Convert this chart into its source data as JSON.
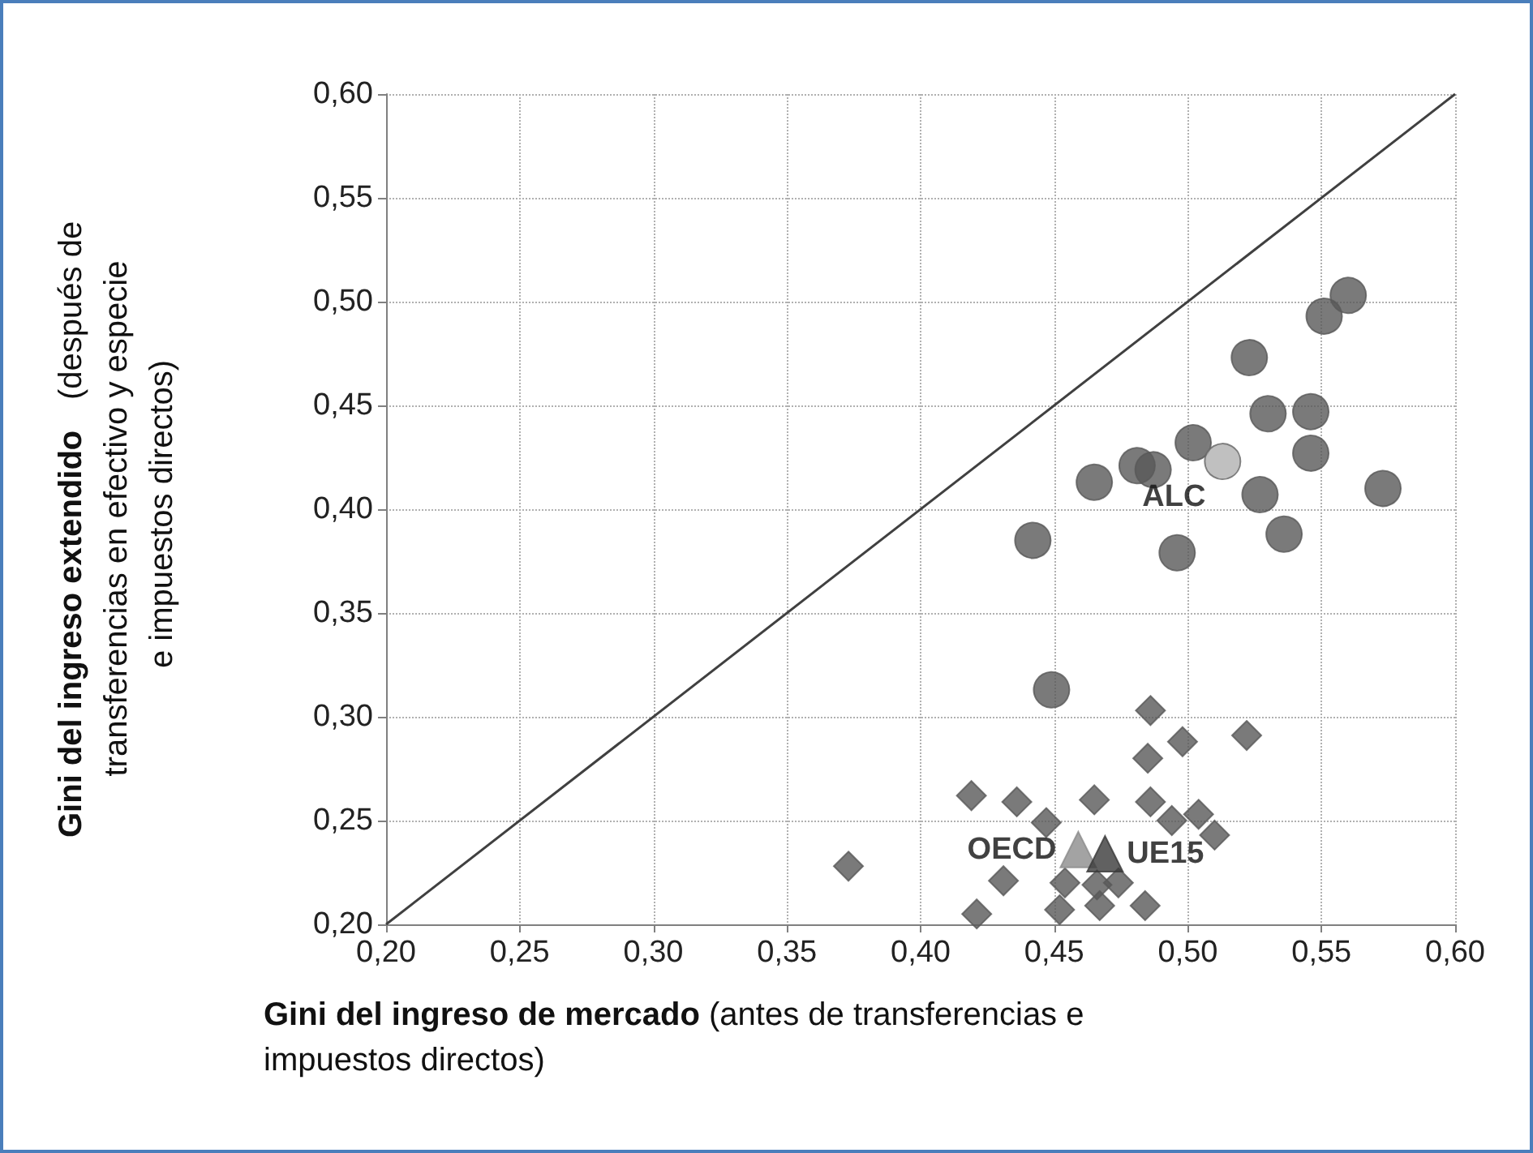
{
  "chart_data": {
    "type": "scatter",
    "xlabel": "Gini del ingreso de mercado (antes de transferencias e impuestos directos)",
    "ylabel": "Gini del ingreso extendido (después de transferencias en efectivo y especie e impuestos directos)",
    "xlim": [
      0.2,
      0.6
    ],
    "ylim": [
      0.2,
      0.6
    ],
    "xticks": [
      {
        "value": 0.2,
        "label": "0,20"
      },
      {
        "value": 0.25,
        "label": "0,25"
      },
      {
        "value": 0.3,
        "label": "0,30"
      },
      {
        "value": 0.35,
        "label": "0,35"
      },
      {
        "value": 0.4,
        "label": "0,40"
      },
      {
        "value": 0.45,
        "label": "0,45"
      },
      {
        "value": 0.5,
        "label": "0,50"
      },
      {
        "value": 0.55,
        "label": "0,55"
      },
      {
        "value": 0.6,
        "label": "0,60"
      }
    ],
    "yticks": [
      {
        "value": 0.2,
        "label": "0,20"
      },
      {
        "value": 0.25,
        "label": "0,25"
      },
      {
        "value": 0.3,
        "label": "0,30"
      },
      {
        "value": 0.35,
        "label": "0,35"
      },
      {
        "value": 0.4,
        "label": "0,40"
      },
      {
        "value": 0.45,
        "label": "0,45"
      },
      {
        "value": 0.5,
        "label": "0,50"
      },
      {
        "value": 0.55,
        "label": "0,55"
      },
      {
        "value": 0.6,
        "label": "0,60"
      }
    ],
    "grid": true,
    "legend": false,
    "series": [
      {
        "type": "line",
        "color": "#404040",
        "marker": "none",
        "x": [
          0.2,
          0.6
        ],
        "values": [
          0.2,
          0.6
        ]
      },
      {
        "color": "#595959",
        "marker": "circle",
        "x": [
          0.56,
          0.551,
          0.523,
          0.53,
          0.546,
          0.546,
          0.502,
          0.481,
          0.487,
          0.465,
          0.527,
          0.573,
          0.536,
          0.442,
          0.496,
          0.449
        ],
        "values": [
          0.503,
          0.493,
          0.473,
          0.446,
          0.447,
          0.427,
          0.432,
          0.421,
          0.419,
          0.413,
          0.407,
          0.41,
          0.388,
          0.385,
          0.379,
          0.313
        ]
      },
      {
        "color": "#595959",
        "marker": "diamond",
        "x": [
          0.486,
          0.498,
          0.522,
          0.485,
          0.419,
          0.436,
          0.465,
          0.486,
          0.447,
          0.494,
          0.504,
          0.51,
          0.373,
          0.431,
          0.454,
          0.466,
          0.474,
          0.421,
          0.452,
          0.467,
          0.484
        ],
        "values": [
          0.303,
          0.288,
          0.291,
          0.28,
          0.262,
          0.259,
          0.26,
          0.259,
          0.249,
          0.25,
          0.253,
          0.243,
          0.228,
          0.221,
          0.22,
          0.219,
          0.22,
          0.205,
          0.207,
          0.209,
          0.209
        ]
      },
      {
        "name": "ALC",
        "color": "#b0b0b0",
        "marker": "circle",
        "x": [
          0.513
        ],
        "values": [
          0.423
        ]
      },
      {
        "name": "OECD",
        "color": "#8c8c8c",
        "marker": "triangle",
        "x": [
          0.459
        ],
        "values": [
          0.236
        ]
      },
      {
        "name": "UE15",
        "color": "#3a3a3a",
        "marker": "triangle",
        "x": [
          0.469
        ],
        "values": [
          0.234
        ]
      }
    ]
  }
}
